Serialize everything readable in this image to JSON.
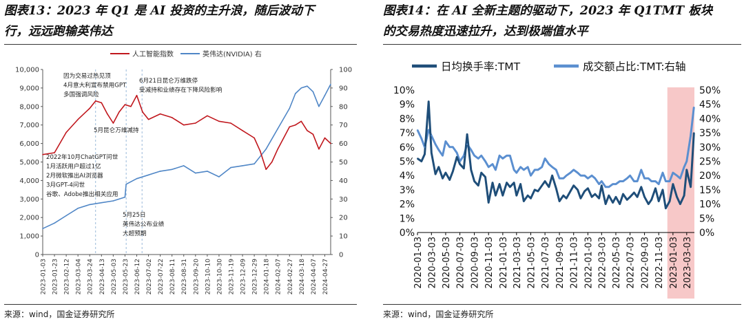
{
  "left": {
    "title_line1": "图表13：2023 年 Q1 是 AI 投资的主升浪，随后波动下",
    "title_line2": "行，远远跑输英伟达",
    "source": "来源：wind，国金证券研究所"
  },
  "right": {
    "title_line1": "图表14：在 AI 全新主题的驱动下，2023 年 Q1TMT 板块",
    "title_line2": "的交易热度迅速拉升，达到极端值水平",
    "source": "来源：wind，国金证券研究所"
  },
  "colors": {
    "ai_index": "#c0161c",
    "nvidia": "#4f86c6",
    "turnover": "#1f4e79",
    "share": "#5b8fd0",
    "highlight": "#f4b6b6",
    "grid": "#000000"
  },
  "chart_data": [
    {
      "type": "line",
      "legend_position": "top",
      "x_tick_labels": [
        "2023-01-03",
        "2023-01-23",
        "2023-02-12",
        "2023-03-04",
        "2023-03-24",
        "2023-04-13",
        "2023-05-03",
        "2023-05-23",
        "2023-06-12",
        "2023-07-02",
        "2023-07-22",
        "2023-08-11",
        "2023-08-31",
        "2023-09-20",
        "2023-10-10",
        "2023-10-30",
        "2023-11-19",
        "2023-12-09",
        "2023-12-29",
        "2024-01-18",
        "2024-02-07",
        "2024-02-27",
        "2024-03-18",
        "2024-04-07",
        "2024-04-27"
      ],
      "y_left": {
        "range": [
          0,
          10000
        ],
        "ticks": [
          "0",
          "1,000",
          "2,000",
          "3,000",
          "4,000",
          "5,000",
          "6,000",
          "7,000",
          "8,000",
          "9,000",
          "10,000"
        ]
      },
      "y_right": {
        "range": [
          0,
          100
        ],
        "ticks": [
          "0",
          "10",
          "20",
          "30",
          "40",
          "50",
          "60",
          "70",
          "80",
          "90",
          "100"
        ]
      },
      "series": [
        {
          "name": "人工智能指数",
          "axis": "left",
          "x": [
            "2023-01-03",
            "2023-01-23",
            "2023-02-12",
            "2023-03-04",
            "2023-03-24",
            "2023-04-03",
            "2023-04-13",
            "2023-04-23",
            "2023-05-03",
            "2023-05-13",
            "2023-05-23",
            "2023-06-02",
            "2023-06-12",
            "2023-06-22",
            "2023-07-02",
            "2023-07-22",
            "2023-08-11",
            "2023-08-31",
            "2023-09-20",
            "2023-10-10",
            "2023-10-30",
            "2023-11-19",
            "2023-12-09",
            "2023-12-29",
            "2024-01-08",
            "2024-01-18",
            "2024-01-28",
            "2024-02-07",
            "2024-02-17",
            "2024-02-27",
            "2024-03-08",
            "2024-03-18",
            "2024-03-28",
            "2024-04-07",
            "2024-04-17",
            "2024-04-27",
            "2024-05-07"
          ],
          "values": [
            5400,
            5500,
            6600,
            7300,
            7900,
            8300,
            8200,
            7600,
            7100,
            7700,
            8100,
            8000,
            8600,
            7700,
            7300,
            7600,
            7400,
            7000,
            7100,
            7500,
            7200,
            7100,
            6700,
            6300,
            5600,
            4600,
            5000,
            5700,
            6300,
            6900,
            7000,
            7200,
            6700,
            6500,
            5700,
            6300,
            6000
          ]
        },
        {
          "name": "英伟达(NVIDIA) 右",
          "axis": "right",
          "x": [
            "2023-01-03",
            "2023-01-23",
            "2023-02-12",
            "2023-03-04",
            "2023-03-24",
            "2023-04-13",
            "2023-05-03",
            "2023-05-23",
            "2023-05-25",
            "2023-06-12",
            "2023-07-02",
            "2023-07-22",
            "2023-08-11",
            "2023-08-31",
            "2023-09-20",
            "2023-10-10",
            "2023-10-30",
            "2023-11-19",
            "2023-12-09",
            "2023-12-29",
            "2024-01-18",
            "2024-02-07",
            "2024-02-27",
            "2024-03-08",
            "2024-03-18",
            "2024-03-28",
            "2024-04-07",
            "2024-04-17",
            "2024-04-27",
            "2024-05-07"
          ],
          "values": [
            14,
            17,
            21,
            25,
            27,
            28,
            29,
            31,
            38,
            41,
            43,
            45,
            46,
            48,
            44,
            45,
            42,
            47,
            48,
            49,
            57,
            68,
            79,
            87,
            90,
            91,
            88,
            80,
            86,
            92
          ]
        }
      ],
      "annotations": [
        "因为交易过热见顶\n4月意大利宣布禁用GPT\n多国强调风险",
        "6月21日昆仑万维跌停\n受减持和业绩存在下降风险影响",
        "5月昆仑万维减持",
        "2022年10月ChatGPT问世\n1月活跃用户超过1亿\n2月微软推出AI浏览器\n3月GPT-4问世\n谷歌、Adobe推出相关应用",
        "5月25日\n英伟达公布业绩\n大超预期"
      ]
    },
    {
      "type": "line",
      "legend_position": "top",
      "x_tick_labels": [
        "2020-01-03",
        "2020-03-03",
        "2020-05-03",
        "2020-07-03",
        "2020-09-03",
        "2020-11-03",
        "2021-01-03",
        "2021-03-03",
        "2021-05-03",
        "2021-07-03",
        "2021-09-03",
        "2021-11-03",
        "2022-01-03",
        "2022-03-03",
        "2022-05-03",
        "2022-07-03",
        "2022-09-03",
        "2022-11-03",
        "2023-01-03",
        "2023-03-03"
      ],
      "y_left": {
        "range": [
          0,
          10
        ],
        "unit": "%",
        "ticks": [
          "0%",
          "1%",
          "2%",
          "3%",
          "4%",
          "5%",
          "6%",
          "7%",
          "8%",
          "9%",
          "10%"
        ]
      },
      "y_right": {
        "range": [
          0,
          50
        ],
        "unit": "%",
        "ticks": [
          "0%",
          "5%",
          "10%",
          "15%",
          "20%",
          "25%",
          "30%",
          "35%",
          "40%",
          "45%",
          "50%"
        ]
      },
      "highlight_range": [
        "2022-12-10",
        "2023-04-05"
      ],
      "series": [
        {
          "name": "日均换手率:TMT",
          "axis": "left",
          "x": [
            "2020-01-03",
            "2020-01-20",
            "2020-02-03",
            "2020-02-20",
            "2020-03-03",
            "2020-03-20",
            "2020-04-03",
            "2020-04-20",
            "2020-05-03",
            "2020-05-20",
            "2020-06-03",
            "2020-06-20",
            "2020-07-03",
            "2020-07-20",
            "2020-08-03",
            "2020-08-20",
            "2020-09-03",
            "2020-09-20",
            "2020-10-03",
            "2020-10-20",
            "2020-11-03",
            "2020-11-20",
            "2020-12-03",
            "2020-12-20",
            "2021-01-03",
            "2021-01-20",
            "2021-02-03",
            "2021-02-20",
            "2021-03-03",
            "2021-03-20",
            "2021-04-03",
            "2021-04-20",
            "2021-05-03",
            "2021-05-20",
            "2021-06-03",
            "2021-06-20",
            "2021-07-03",
            "2021-07-20",
            "2021-08-03",
            "2021-08-20",
            "2021-09-03",
            "2021-09-20",
            "2021-10-03",
            "2021-10-20",
            "2021-11-03",
            "2021-11-20",
            "2021-12-03",
            "2021-12-20",
            "2022-01-03",
            "2022-01-20",
            "2022-02-03",
            "2022-02-20",
            "2022-03-03",
            "2022-03-20",
            "2022-04-03",
            "2022-04-20",
            "2022-05-03",
            "2022-05-20",
            "2022-06-03",
            "2022-06-20",
            "2022-07-03",
            "2022-07-20",
            "2022-08-03",
            "2022-08-20",
            "2022-09-03",
            "2022-09-20",
            "2022-10-03",
            "2022-10-20",
            "2022-11-03",
            "2022-11-20",
            "2022-12-03",
            "2022-12-20",
            "2023-01-03",
            "2023-01-20",
            "2023-02-03",
            "2023-02-20",
            "2023-03-03",
            "2023-03-20",
            "2023-04-03"
          ],
          "values": [
            5.2,
            5.0,
            5.5,
            9.2,
            5.6,
            4.1,
            4.6,
            3.8,
            4.2,
            3.7,
            4.3,
            5.3,
            4.8,
            4.5,
            6.9,
            4.4,
            3.6,
            3.3,
            4.2,
            3.9,
            2.1,
            3.5,
            2.6,
            3.4,
            2.6,
            3.5,
            3.2,
            3.5,
            2.6,
            3.4,
            2.2,
            2.6,
            2.4,
            3.0,
            2.9,
            3.3,
            3.6,
            3.2,
            4.0,
            3.1,
            2.2,
            2.6,
            2.4,
            2.9,
            3.3,
            3.0,
            2.4,
            2.9,
            3.1,
            2.5,
            2.7,
            2.4,
            3.3,
            2.0,
            2.6,
            2.1,
            2.5,
            2.0,
            2.7,
            2.3,
            2.5,
            2.8,
            2.5,
            3.2,
            2.5,
            2.0,
            2.3,
            3.1,
            2.2,
            3.0,
            1.7,
            2.2,
            3.4,
            2.5,
            2.0,
            2.6,
            4.4,
            3.2,
            7.0
          ]
        },
        {
          "name": "成交额占比:TMT:右轴",
          "axis": "right",
          "x": [
            "2020-01-03",
            "2020-01-20",
            "2020-02-03",
            "2020-02-20",
            "2020-03-03",
            "2020-03-20",
            "2020-04-03",
            "2020-04-20",
            "2020-05-03",
            "2020-05-20",
            "2020-06-03",
            "2020-06-20",
            "2020-07-03",
            "2020-07-20",
            "2020-08-03",
            "2020-08-20",
            "2020-09-03",
            "2020-09-20",
            "2020-10-03",
            "2020-10-20",
            "2020-11-03",
            "2020-11-20",
            "2020-12-03",
            "2020-12-20",
            "2021-01-03",
            "2021-01-20",
            "2021-02-03",
            "2021-02-20",
            "2021-03-03",
            "2021-03-20",
            "2021-04-03",
            "2021-04-20",
            "2021-05-03",
            "2021-05-20",
            "2021-06-03",
            "2021-06-20",
            "2021-07-03",
            "2021-07-20",
            "2021-08-03",
            "2021-08-20",
            "2021-09-03",
            "2021-09-20",
            "2021-10-03",
            "2021-10-20",
            "2021-11-03",
            "2021-11-20",
            "2021-12-03",
            "2021-12-20",
            "2022-01-03",
            "2022-01-20",
            "2022-02-03",
            "2022-02-20",
            "2022-03-03",
            "2022-03-20",
            "2022-04-03",
            "2022-04-20",
            "2022-05-03",
            "2022-05-20",
            "2022-06-03",
            "2022-06-20",
            "2022-07-03",
            "2022-07-20",
            "2022-08-03",
            "2022-08-20",
            "2022-09-03",
            "2022-09-20",
            "2022-10-03",
            "2022-10-20",
            "2022-11-03",
            "2022-11-20",
            "2022-12-03",
            "2022-12-20",
            "2023-01-03",
            "2023-01-20",
            "2023-02-03",
            "2023-02-20",
            "2023-03-03",
            "2023-03-20",
            "2023-04-03"
          ],
          "values": [
            36,
            33,
            30,
            36,
            34,
            31,
            29,
            27,
            32,
            30,
            30,
            28,
            25,
            27,
            31,
            29,
            27,
            26,
            27,
            25,
            23,
            24,
            22,
            27,
            26,
            27,
            27,
            22,
            21,
            23,
            22,
            23,
            20,
            22,
            22,
            23,
            26,
            24,
            23,
            22,
            19,
            19,
            20,
            21,
            22,
            21,
            20,
            20,
            19,
            20,
            19,
            17,
            18,
            16,
            16,
            17,
            17,
            18,
            18,
            19,
            20,
            18,
            18,
            22,
            19,
            19,
            18,
            18,
            17,
            21,
            18,
            18,
            21,
            20,
            19,
            23,
            25,
            34,
            44
          ]
        }
      ]
    }
  ]
}
